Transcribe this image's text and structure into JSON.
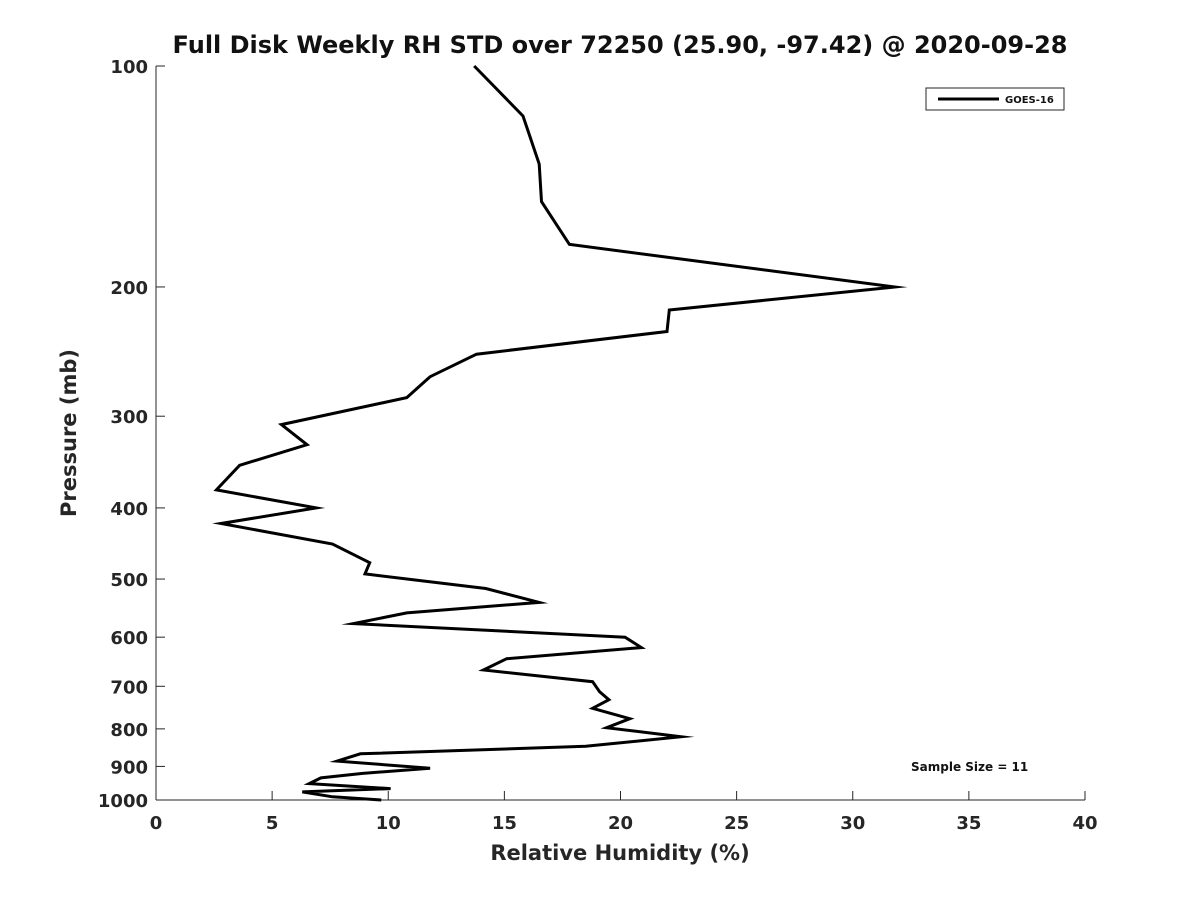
{
  "chart_data": {
    "type": "line",
    "title": "Full Disk Weekly RH STD over 72250 (25.90, -97.42) @ 2020-09-28",
    "xlabel": "Relative Humidity (%)",
    "ylabel": "Pressure (mb)",
    "xlim": [
      0,
      40
    ],
    "ylim": [
      100,
      1000
    ],
    "yscale": "log",
    "y_reversed": true,
    "grid": false,
    "x_ticks": [
      0,
      5,
      10,
      15,
      20,
      25,
      30,
      35,
      40
    ],
    "x_tick_labels": [
      "0",
      "5",
      "10",
      "15",
      "20",
      "25",
      "30",
      "35",
      "40"
    ],
    "y_ticks": [
      100,
      200,
      300,
      400,
      500,
      600,
      700,
      800,
      900,
      1000
    ],
    "y_tick_labels": [
      "100",
      "200",
      "300",
      "400",
      "500",
      "600",
      "700",
      "800",
      "900",
      "1000"
    ],
    "legend": {
      "position": "top-right",
      "entries": [
        "GOES-16"
      ]
    },
    "annotations": [
      {
        "text": "Sample Size = 11",
        "position": "bottom-right"
      }
    ],
    "series": [
      {
        "name": "GOES-16",
        "color": "#000000",
        "x": [
          13.7,
          15.8,
          16.5,
          16.6,
          17.8,
          31.8,
          22.1,
          22.0,
          13.8,
          11.8,
          10.8,
          5.4,
          6.5,
          3.6,
          2.6,
          6.9,
          2.8,
          7.6,
          9.2,
          9.0,
          14.2,
          16.5,
          10.8,
          8.5,
          20.2,
          20.9,
          15.1,
          14.1,
          18.8,
          19.1,
          19.5,
          18.8,
          20.4,
          19.4,
          22.6,
          18.5,
          8.8,
          7.8,
          11.8,
          8.9,
          7.1,
          6.6,
          10.1,
          6.3,
          7.6,
          9.7
        ],
        "y": [
          100,
          117,
          136,
          153,
          175,
          200,
          215,
          230,
          247,
          265,
          283,
          308,
          328,
          350,
          378,
          400,
          420,
          448,
          475,
          492,
          515,
          538,
          556,
          575,
          600,
          620,
          642,
          665,
          690,
          712,
          730,
          750,
          775,
          797,
          820,
          845,
          865,
          885,
          905,
          920,
          933,
          950,
          965,
          975,
          990,
          1000
        ]
      }
    ]
  }
}
